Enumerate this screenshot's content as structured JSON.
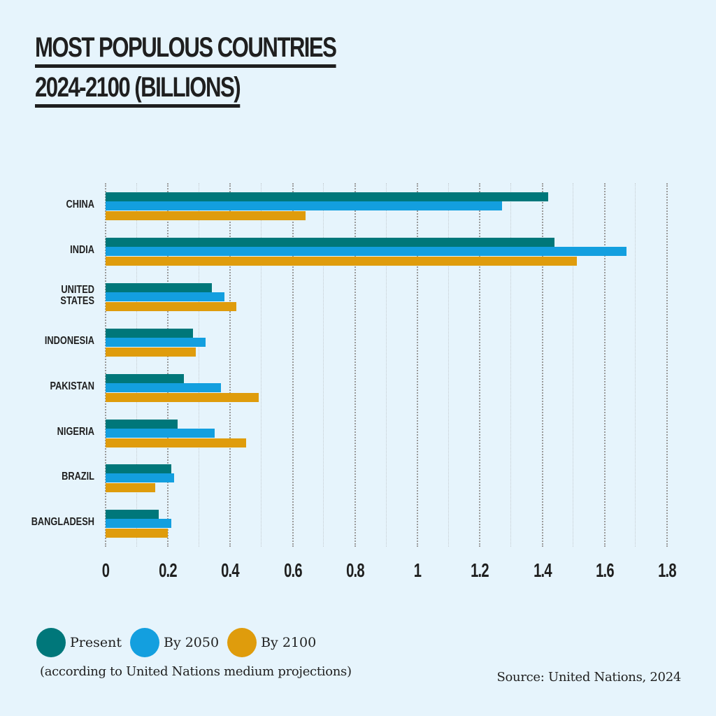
{
  "title": {
    "line1": "MOST POPULOUS COUNTRIES",
    "line2": "2024-2100 (BILLIONS)"
  },
  "colors": {
    "present": "#00777a",
    "by2050": "#139fdf",
    "by2100": "#df9c0c",
    "background": "#e6f4fc",
    "text": "#1f1f1f"
  },
  "legend": {
    "items": [
      {
        "label": "Present",
        "color": "#00777a"
      },
      {
        "label": "By 2050",
        "color": "#139fdf"
      },
      {
        "label": "By 2100",
        "color": "#df9c0c"
      }
    ],
    "note": "(according to United Nations medium projections)"
  },
  "source": "Source: United Nations, 2024",
  "chart_data": {
    "type": "bar",
    "orientation": "horizontal",
    "title": "MOST POPULOUS COUNTRIES 2024-2100 (BILLIONS)",
    "xlabel": "",
    "ylabel": "",
    "xlim": [
      0,
      1.8
    ],
    "xticks": [
      "0",
      "0.2",
      "0.4",
      "0.6",
      "0.8",
      "1",
      "1.2",
      "1.4",
      "1.6",
      "1.8"
    ],
    "grid": true,
    "legend_position": "bottom-left",
    "categories": [
      "CHINA",
      "INDIA",
      "UNITED STATES",
      "INDONESIA",
      "PAKISTAN",
      "NIGERIA",
      "BRAZIL",
      "BANGLADESH"
    ],
    "category_labels": [
      [
        "CHINA"
      ],
      [
        "INDIA"
      ],
      [
        "UNITED",
        "STATES"
      ],
      [
        "INDONESIA"
      ],
      [
        "PAKISTAN"
      ],
      [
        "NIGERIA"
      ],
      [
        "BRAZIL"
      ],
      [
        "BANGLADESH"
      ]
    ],
    "series": [
      {
        "name": "Present",
        "color": "#00777a",
        "values": [
          1.42,
          1.44,
          0.34,
          0.28,
          0.25,
          0.23,
          0.21,
          0.17
        ]
      },
      {
        "name": "By 2050",
        "color": "#139fdf",
        "values": [
          1.27,
          1.67,
          0.38,
          0.32,
          0.37,
          0.35,
          0.22,
          0.21
        ]
      },
      {
        "name": "By 2100",
        "color": "#df9c0c",
        "values": [
          0.64,
          1.51,
          0.42,
          0.29,
          0.49,
          0.45,
          0.16,
          0.2
        ]
      }
    ],
    "annotation": "(according to United Nations medium projections)",
    "source": "Source: United Nations, 2024"
  }
}
